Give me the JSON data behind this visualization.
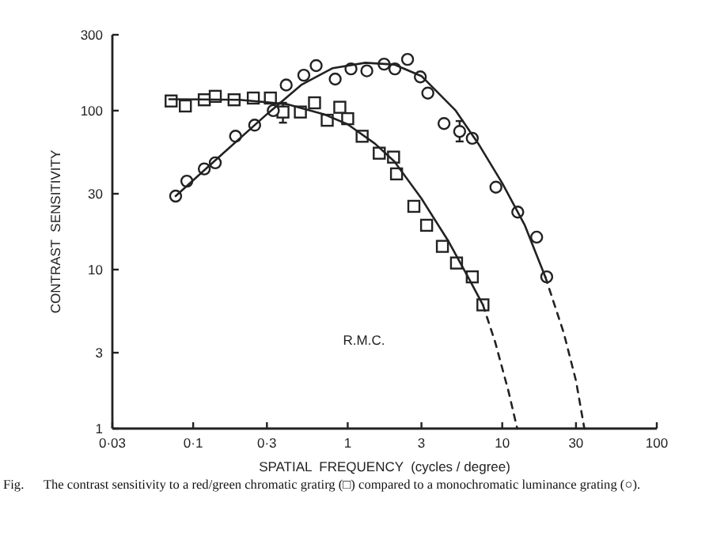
{
  "chart_data": {
    "type": "scatter",
    "xlabel": "SPATIAL  FREQUENCY  (cycles / degree)",
    "ylabel": "CONTRAST  SENSITIVITY",
    "log": "xy",
    "xlim": [
      0.03,
      100
    ],
    "ylim": [
      1,
      300
    ],
    "xticks": [
      {
        "value": 0.03,
        "label": "0·03"
      },
      {
        "value": 0.1,
        "label": "0·1"
      },
      {
        "value": 0.3,
        "label": "0·3"
      },
      1,
      3,
      10,
      30,
      100
    ],
    "yticks": [
      1,
      3,
      10,
      30,
      100,
      300
    ],
    "grid": false,
    "annotations": [
      "R.M.C.",
      "Fig.      The contrast sensitivity to a red/green chromatic gratirg (□) compared to a monochromatic luminance grating (○)."
    ],
    "series": [
      {
        "type": "scatter",
        "marker": "square",
        "color": "#222222",
        "x": [
          0.072,
          0.089,
          0.118,
          0.139,
          0.184,
          0.245,
          0.316,
          0.381,
          0.494,
          0.61,
          0.737,
          0.889,
          1.0,
          1.24,
          1.6,
          1.98,
          2.07,
          2.68,
          3.24,
          4.1,
          5.06,
          6.4,
          7.5
        ],
        "values": [
          115,
          107,
          117,
          123,
          117,
          120,
          120,
          98,
          98,
          112,
          87,
          105,
          89,
          69,
          54,
          51,
          40,
          25,
          19,
          14,
          11,
          9,
          6
        ],
        "errors": [
          null,
          null,
          null,
          null,
          null,
          null,
          null,
          [
            84,
            112
          ],
          null,
          null,
          null,
          null,
          null,
          null,
          null,
          null,
          null,
          null,
          null,
          null,
          null,
          null,
          null
        ]
      },
      {
        "type": "scatter",
        "marker": "circle",
        "color": "#222222",
        "x": [
          0.077,
          0.091,
          0.118,
          0.139,
          0.188,
          0.25,
          0.33,
          0.4,
          0.52,
          0.625,
          0.83,
          1.05,
          1.33,
          1.72,
          2.02,
          2.44,
          2.95,
          3.3,
          4.2,
          5.3,
          6.4,
          9.1,
          12.6,
          16.7,
          19.4
        ],
        "values": [
          29,
          36,
          43,
          47,
          69,
          81,
          100,
          145,
          167,
          192,
          158,
          183,
          178,
          196,
          183,
          210,
          163,
          129,
          83,
          74,
          67,
          33,
          23,
          16,
          9
        ],
        "errors": [
          null,
          null,
          null,
          null,
          null,
          null,
          null,
          null,
          null,
          null,
          null,
          null,
          null,
          null,
          null,
          null,
          null,
          null,
          null,
          [
            64,
            86
          ],
          null,
          null,
          null,
          null,
          null
        ]
      },
      {
        "type": "line",
        "marker": "none",
        "line_style": "solid",
        "color": "#222222",
        "x": [
          0.07,
          0.2,
          0.4,
          0.7,
          1,
          1.5,
          2,
          3,
          4.5,
          6,
          7.5
        ],
        "values": [
          118,
          117,
          110,
          95,
          82,
          62,
          48,
          28,
          15,
          9,
          6
        ]
      },
      {
        "type": "line",
        "marker": "none",
        "line_style": "dashed",
        "color": "#222222",
        "x": [
          7.5,
          9,
          11,
          12.5
        ],
        "values": [
          6,
          3.5,
          1.7,
          1
        ]
      },
      {
        "type": "line",
        "marker": "none",
        "line_style": "solid",
        "color": "#222222",
        "x": [
          0.077,
          0.15,
          0.3,
          0.5,
          0.8,
          1.3,
          2,
          3,
          5,
          7,
          10,
          14,
          19
        ],
        "values": [
          29,
          52,
          95,
          145,
          185,
          200,
          195,
          165,
          100,
          62,
          35,
          19,
          9
        ]
      },
      {
        "type": "line",
        "marker": "none",
        "line_style": "dashed",
        "color": "#222222",
        "x": [
          19,
          25,
          30,
          34
        ],
        "values": [
          9,
          4,
          2,
          1
        ]
      }
    ]
  }
}
